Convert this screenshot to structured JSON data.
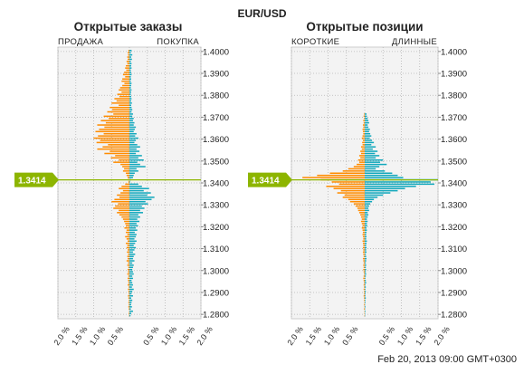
{
  "header": {
    "title": "EUR/USD"
  },
  "footer": {
    "timestamp": "Feb 20, 2013 09:00 GMT+0300"
  },
  "colors": {
    "orange": "#ff8c00",
    "teal": "#12a8bc",
    "price_line": "#8db500",
    "grid": "#b5b5b5",
    "plot_bg": "#f3f3f3"
  },
  "chart_data": [
    {
      "type": "bar",
      "orientation": "horizontal-diverging",
      "title": "Открытые заказы",
      "left_label": "ПРОДАЖА",
      "right_label": "ПОКУПКА",
      "current_price": 1.3414,
      "current_price_label": "1.3414",
      "price_ticks": [
        "1.4000",
        "1.3900",
        "1.3800",
        "1.3700",
        "1.3600",
        "1.3500",
        "1.3400",
        "1.3300",
        "1.3200",
        "1.3100",
        "1.3000",
        "1.2900",
        "1.2800"
      ],
      "x_ticks_left": [
        "2.0 %",
        "1.5 %",
        "1.0 %",
        "0.5 %"
      ],
      "x_ticks_right": [
        "0.5 %",
        "1.0 %",
        "1.5 %",
        "2.0 %"
      ],
      "xlim": [
        -2.0,
        2.0
      ],
      "ylim": [
        1.278,
        1.402
      ],
      "price_step": 0.0005,
      "series": [
        {
          "side": "left",
          "prices": [
            1.4005,
            1.3995,
            1.3985,
            1.3975,
            1.3965,
            1.3955,
            1.3945,
            1.3935,
            1.3925,
            1.3915,
            1.3905,
            1.3895,
            1.3885,
            1.3875,
            1.3865,
            1.3855,
            1.3845,
            1.3835,
            1.3825,
            1.3815,
            1.3805,
            1.3795,
            1.3785,
            1.3775,
            1.3765,
            1.3755,
            1.3745,
            1.3735,
            1.3725,
            1.3715,
            1.3705,
            1.3695,
            1.3685,
            1.3675,
            1.3665,
            1.3655,
            1.3645,
            1.3635,
            1.3625,
            1.3615,
            1.3605,
            1.3595,
            1.3585,
            1.3575,
            1.3565,
            1.3555,
            1.3545,
            1.3535,
            1.3525,
            1.3515,
            1.3505,
            1.3495,
            1.3485,
            1.3475,
            1.3465,
            1.3455,
            1.3445,
            1.3435,
            1.3425,
            1.3415,
            1.3405,
            1.3395,
            1.3385,
            1.3375,
            1.3365,
            1.3355,
            1.3345,
            1.3335,
            1.3325,
            1.3315,
            1.3305,
            1.3295,
            1.3285,
            1.3275,
            1.3265,
            1.3255,
            1.3245,
            1.3235,
            1.3225,
            1.3215,
            1.3205,
            1.3195,
            1.3185,
            1.3175,
            1.3165,
            1.3155,
            1.3145,
            1.3135,
            1.3125,
            1.3115,
            1.3105,
            1.3095,
            1.3085,
            1.3075,
            1.3065,
            1.3055,
            1.3045,
            1.3035,
            1.3025,
            1.3015,
            1.3005,
            1.2995,
            1.2985,
            1.2975,
            1.2965,
            1.2955,
            1.2945,
            1.2935,
            1.2925,
            1.2915,
            1.2905,
            1.2895,
            1.2885,
            1.2875,
            1.2865,
            1.2855,
            1.2845,
            1.2835,
            1.2825,
            1.2815,
            1.2805,
            1.2795
          ],
          "values": [
            0.03,
            0.05,
            0.04,
            0.06,
            0.05,
            0.08,
            0.06,
            0.1,
            0.12,
            0.09,
            0.15,
            0.18,
            0.12,
            0.2,
            0.22,
            0.14,
            0.2,
            0.26,
            0.3,
            0.22,
            0.34,
            0.28,
            0.42,
            0.36,
            0.5,
            0.3,
            0.55,
            0.48,
            0.62,
            0.45,
            0.72,
            0.58,
            0.8,
            0.66,
            0.9,
            0.7,
            0.85,
            0.95,
            0.72,
            0.88,
            1.0,
            0.82,
            0.92,
            0.6,
            0.75,
            0.9,
            0.55,
            0.7,
            0.4,
            0.52,
            0.3,
            0.45,
            0.25,
            0.2,
            0.15,
            0.18,
            0.1,
            0.08,
            0.05,
            0.04,
            0.03,
            0.12,
            0.22,
            0.3,
            0.18,
            0.25,
            0.35,
            0.28,
            0.42,
            0.5,
            0.32,
            0.4,
            0.45,
            0.3,
            0.35,
            0.28,
            0.22,
            0.18,
            0.15,
            0.12,
            0.1,
            0.14,
            0.08,
            0.1,
            0.06,
            0.12,
            0.08,
            0.05,
            0.1,
            0.06,
            0.08,
            0.05,
            0.07,
            0.04,
            0.06,
            0.05,
            0.08,
            0.04,
            0.06,
            0.03,
            0.05,
            0.04,
            0.06,
            0.03,
            0.05,
            0.04,
            0.03,
            0.05,
            0.02,
            0.04,
            0.03,
            0.02,
            0.04,
            0.03,
            0.02,
            0.03,
            0.02,
            0.03,
            0.02,
            0.01,
            0.02,
            0.01
          ]
        },
        {
          "side": "right",
          "prices": [
            1.4005,
            1.3995,
            1.3985,
            1.3975,
            1.3965,
            1.3955,
            1.3945,
            1.3935,
            1.3925,
            1.3915,
            1.3905,
            1.3895,
            1.3885,
            1.3875,
            1.3865,
            1.3855,
            1.3845,
            1.3835,
            1.3825,
            1.3815,
            1.3805,
            1.3795,
            1.3785,
            1.3775,
            1.3765,
            1.3755,
            1.3745,
            1.3735,
            1.3725,
            1.3715,
            1.3705,
            1.3695,
            1.3685,
            1.3675,
            1.3665,
            1.3655,
            1.3645,
            1.3635,
            1.3625,
            1.3615,
            1.3605,
            1.3595,
            1.3585,
            1.3575,
            1.3565,
            1.3555,
            1.3545,
            1.3535,
            1.3525,
            1.3515,
            1.3505,
            1.3495,
            1.3485,
            1.3475,
            1.3465,
            1.3455,
            1.3445,
            1.3435,
            1.3425,
            1.3415,
            1.3405,
            1.3395,
            1.3385,
            1.3375,
            1.3365,
            1.3355,
            1.3345,
            1.3335,
            1.3325,
            1.3315,
            1.3305,
            1.3295,
            1.3285,
            1.3275,
            1.3265,
            1.3255,
            1.3245,
            1.3235,
            1.3225,
            1.3215,
            1.3205,
            1.3195,
            1.3185,
            1.3175,
            1.3165,
            1.3155,
            1.3145,
            1.3135,
            1.3125,
            1.3115,
            1.3105,
            1.3095,
            1.3085,
            1.3075,
            1.3065,
            1.3055,
            1.3045,
            1.3035,
            1.3025,
            1.3015,
            1.3005,
            1.2995,
            1.2985,
            1.2975,
            1.2965,
            1.2955,
            1.2945,
            1.2935,
            1.2925,
            1.2915,
            1.2905,
            1.2895,
            1.2885,
            1.2875,
            1.2865,
            1.2855,
            1.2845,
            1.2835,
            1.2825,
            1.2815,
            1.2805,
            1.2795
          ],
          "values": [
            0.06,
            0.04,
            0.08,
            0.05,
            0.07,
            0.04,
            0.06,
            0.05,
            0.06,
            0.04,
            0.05,
            0.06,
            0.04,
            0.05,
            0.04,
            0.06,
            0.05,
            0.04,
            0.06,
            0.05,
            0.04,
            0.05,
            0.06,
            0.05,
            0.07,
            0.05,
            0.06,
            0.08,
            0.06,
            0.1,
            0.08,
            0.12,
            0.1,
            0.14,
            0.12,
            0.18,
            0.15,
            0.12,
            0.2,
            0.16,
            0.25,
            0.18,
            0.14,
            0.22,
            0.3,
            0.2,
            0.28,
            0.18,
            0.35,
            0.25,
            0.4,
            0.22,
            0.3,
            0.45,
            0.2,
            0.25,
            0.15,
            0.12,
            0.1,
            0.05,
            0.02,
            0.25,
            0.35,
            0.55,
            0.4,
            0.6,
            0.5,
            0.7,
            0.62,
            0.45,
            0.52,
            0.35,
            0.42,
            0.3,
            0.38,
            0.25,
            0.3,
            0.22,
            0.28,
            0.2,
            0.24,
            0.18,
            0.22,
            0.15,
            0.2,
            0.18,
            0.14,
            0.2,
            0.16,
            0.12,
            0.18,
            0.14,
            0.1,
            0.16,
            0.12,
            0.1,
            0.14,
            0.08,
            0.12,
            0.1,
            0.08,
            0.1,
            0.12,
            0.08,
            0.1,
            0.06,
            0.08,
            0.1,
            0.07,
            0.12,
            0.08,
            0.06,
            0.1,
            0.05,
            0.08,
            0.06,
            0.05,
            0.07,
            0.04,
            0.1,
            0.05,
            0.03
          ]
        }
      ]
    },
    {
      "type": "bar",
      "orientation": "horizontal-diverging",
      "title": "Открытые позиции",
      "left_label": "КОРОТКИЕ",
      "right_label": "ДЛИННЫЕ",
      "current_price": 1.3414,
      "current_price_label": "1.3414",
      "price_ticks": [
        "1.4000",
        "1.3900",
        "1.3800",
        "1.3700",
        "1.3600",
        "1.3500",
        "1.3400",
        "1.3300",
        "1.3200",
        "1.3100",
        "1.3000",
        "1.2900",
        "1.2800"
      ],
      "x_ticks_left": [
        "2.0 %",
        "1.5 %",
        "1.0 %",
        "0.5 %"
      ],
      "x_ticks_right": [
        "0.5 %",
        "1.0 %",
        "1.5 %",
        "2.0 %"
      ],
      "xlim": [
        -2.0,
        2.0
      ],
      "ylim": [
        1.278,
        1.402
      ],
      "price_step": 0.0005,
      "series": [
        {
          "side": "left",
          "prices": [
            1.3715,
            1.3705,
            1.3695,
            1.3685,
            1.3675,
            1.3665,
            1.3655,
            1.3645,
            1.3635,
            1.3625,
            1.3615,
            1.3605,
            1.3595,
            1.3585,
            1.3575,
            1.3565,
            1.3555,
            1.3545,
            1.3535,
            1.3525,
            1.3515,
            1.3505,
            1.3495,
            1.3485,
            1.3475,
            1.3465,
            1.3455,
            1.3445,
            1.3435,
            1.3425,
            1.3415,
            1.3405,
            1.3395,
            1.3385,
            1.3375,
            1.3365,
            1.3355,
            1.3345,
            1.3335,
            1.3325,
            1.3315,
            1.3305,
            1.3295,
            1.3285,
            1.3275,
            1.3265,
            1.3255,
            1.3245,
            1.3235,
            1.3225,
            1.3215,
            1.3205,
            1.3195,
            1.3185,
            1.3175,
            1.3165,
            1.3155,
            1.3145,
            1.3135,
            1.3125,
            1.3115,
            1.3105,
            1.3095,
            1.3085,
            1.3075,
            1.3065,
            1.3055,
            1.3045,
            1.3035,
            1.3025,
            1.3015,
            1.3005,
            1.2995,
            1.2985,
            1.2975,
            1.2965,
            1.2955,
            1.2945,
            1.2935,
            1.2925,
            1.2915,
            1.2905,
            1.2895,
            1.2885,
            1.2875,
            1.2865,
            1.2855,
            1.2845,
            1.2835,
            1.2825,
            1.2815,
            1.2805,
            1.2795
          ],
          "values": [
            0.02,
            0.03,
            0.02,
            0.04,
            0.03,
            0.05,
            0.04,
            0.06,
            0.05,
            0.04,
            0.06,
            0.08,
            0.05,
            0.07,
            0.06,
            0.1,
            0.08,
            0.12,
            0.1,
            0.15,
            0.12,
            0.18,
            0.15,
            0.22,
            0.3,
            0.45,
            0.6,
            0.95,
            1.3,
            1.7,
            1.2,
            0.9,
            0.7,
            1.05,
            0.85,
            0.65,
            0.75,
            0.55,
            0.6,
            0.45,
            0.4,
            0.3,
            0.25,
            0.2,
            0.18,
            0.15,
            0.12,
            0.1,
            0.08,
            0.1,
            0.08,
            0.06,
            0.08,
            0.06,
            0.05,
            0.06,
            0.05,
            0.04,
            0.06,
            0.05,
            0.04,
            0.05,
            0.04,
            0.05,
            0.04,
            0.03,
            0.05,
            0.04,
            0.03,
            0.04,
            0.03,
            0.04,
            0.03,
            0.02,
            0.03,
            0.04,
            0.03,
            0.02,
            0.03,
            0.02,
            0.03,
            0.02,
            0.02,
            0.03,
            0.02,
            0.02,
            0.01,
            0.02,
            0.01,
            0.02,
            0.01,
            0.01,
            0.01
          ]
        },
        {
          "side": "right",
          "prices": [
            1.3715,
            1.3705,
            1.3695,
            1.3685,
            1.3675,
            1.3665,
            1.3655,
            1.3645,
            1.3635,
            1.3625,
            1.3615,
            1.3605,
            1.3595,
            1.3585,
            1.3575,
            1.3565,
            1.3555,
            1.3545,
            1.3535,
            1.3525,
            1.3515,
            1.3505,
            1.3495,
            1.3485,
            1.3475,
            1.3465,
            1.3455,
            1.3445,
            1.3435,
            1.3425,
            1.3415,
            1.3405,
            1.3395,
            1.3385,
            1.3375,
            1.3365,
            1.3355,
            1.3345,
            1.3335,
            1.3325,
            1.3315,
            1.3305,
            1.3295,
            1.3285,
            1.3275,
            1.3265,
            1.3255,
            1.3245,
            1.3235,
            1.3225,
            1.3215,
            1.3205,
            1.3195,
            1.3185,
            1.3175,
            1.3165,
            1.3155,
            1.3145,
            1.3135,
            1.3125,
            1.3115,
            1.3105,
            1.3095,
            1.3085,
            1.3075,
            1.3065,
            1.3055,
            1.3045,
            1.3035,
            1.3025,
            1.3015,
            1.3005,
            1.2995,
            1.2985,
            1.2975,
            1.2965,
            1.2955,
            1.2945,
            1.2935,
            1.2925,
            1.2915,
            1.2905,
            1.2895,
            1.2885,
            1.2875,
            1.2865,
            1.2855,
            1.2845,
            1.2835,
            1.2825,
            1.2815,
            1.2805,
            1.2795
          ],
          "values": [
            0.05,
            0.06,
            0.08,
            0.1,
            0.12,
            0.08,
            0.1,
            0.14,
            0.12,
            0.15,
            0.18,
            0.14,
            0.2,
            0.25,
            0.18,
            0.3,
            0.22,
            0.35,
            0.28,
            0.4,
            0.3,
            0.5,
            0.42,
            0.6,
            0.4,
            0.3,
            0.55,
            0.75,
            0.9,
            1.05,
            2.0,
            1.8,
            1.9,
            1.4,
            1.1,
            0.9,
            0.7,
            0.5,
            0.35,
            0.25,
            0.2,
            0.15,
            0.12,
            0.1,
            0.12,
            0.08,
            0.1,
            0.08,
            0.06,
            0.08,
            0.06,
            0.07,
            0.05,
            0.06,
            0.05,
            0.04,
            0.05,
            0.04,
            0.06,
            0.05,
            0.04,
            0.05,
            0.04,
            0.05,
            0.03,
            0.04,
            0.05,
            0.04,
            0.03,
            0.04,
            0.03,
            0.04,
            0.03,
            0.04,
            0.03,
            0.02,
            0.03,
            0.04,
            0.02,
            0.03,
            0.02,
            0.03,
            0.02,
            0.02,
            0.03,
            0.02,
            0.02,
            0.01,
            0.02,
            0.01,
            0.02,
            0.01,
            0.01
          ]
        }
      ]
    }
  ]
}
